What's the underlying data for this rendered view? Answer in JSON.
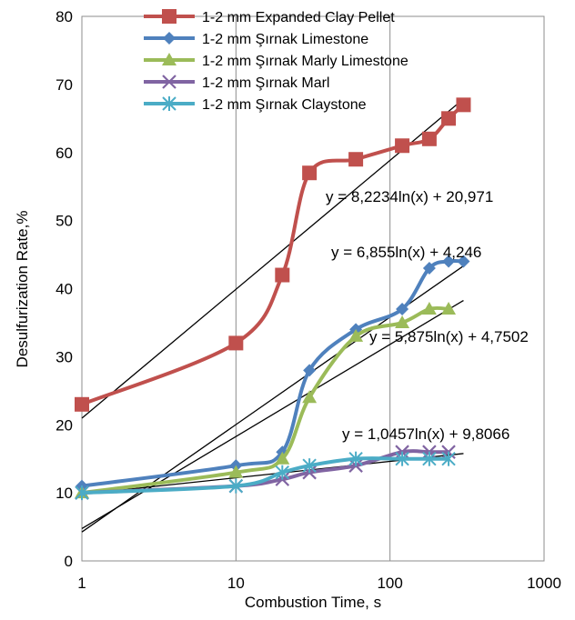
{
  "chart_data": {
    "type": "line",
    "title": "",
    "xlabel": "Combustion Time, s",
    "ylabel": "Desulfurization Rate,%",
    "x_scale": "log",
    "xlim": [
      1,
      1000
    ],
    "ylim": [
      0,
      80
    ],
    "x_ticks": [
      1,
      10,
      100,
      1000
    ],
    "x_tick_labels": [
      "1",
      "10",
      "100",
      "1000"
    ],
    "y_ticks": [
      0,
      10,
      20,
      30,
      40,
      50,
      60,
      70,
      80
    ],
    "y_tick_labels": [
      "0",
      "10",
      "20",
      "30",
      "40",
      "50",
      "60",
      "70",
      "80"
    ],
    "grid": "vertical-major",
    "legend_position": "top",
    "series": [
      {
        "name": "1-2 mm Expanded Clay Pellet",
        "color": "#c0504d",
        "marker": "square",
        "x": [
          1,
          10,
          20,
          30,
          60,
          120,
          180,
          240,
          300
        ],
        "y": [
          23,
          32,
          42,
          57,
          59,
          61,
          62,
          65,
          67
        ]
      },
      {
        "name": "1-2 mm Şırnak Limestone",
        "color": "#4f81bd",
        "marker": "diamond",
        "x": [
          1,
          10,
          20,
          30,
          60,
          120,
          180,
          240,
          300
        ],
        "y": [
          11,
          14,
          16,
          28,
          34,
          37,
          43,
          44,
          44
        ]
      },
      {
        "name": "1-2 mm Şırnak Marly Limestone",
        "color": "#9bbb59",
        "marker": "triangle",
        "x": [
          1,
          10,
          20,
          30,
          60,
          120,
          180,
          240
        ],
        "y": [
          10,
          13,
          15,
          24,
          33,
          35,
          37,
          37
        ]
      },
      {
        "name": "1-2 mm Şırnak Marl",
        "color": "#8064a2",
        "marker": "x",
        "x": [
          1,
          10,
          20,
          30,
          60,
          120,
          180,
          240
        ],
        "y": [
          10,
          11,
          12,
          13,
          14,
          16,
          16,
          16
        ]
      },
      {
        "name": "1-2 mm Şırnak Claystone",
        "color": "#4bacc6",
        "marker": "star",
        "x": [
          1,
          10,
          20,
          30,
          60,
          120,
          180,
          240
        ],
        "y": [
          10,
          11,
          13,
          14,
          15,
          15,
          15,
          15
        ]
      }
    ],
    "trendlines": [
      {
        "a": 8.2234,
        "b": 20.971,
        "x_range": [
          1,
          300
        ],
        "label": "y = 8,2234ln(x) + 20,971"
      },
      {
        "a": 6.855,
        "b": 4.246,
        "x_range": [
          1,
          300
        ],
        "label": "y = 6,855ln(x) + 4,246"
      },
      {
        "a": 5.875,
        "b": 4.7502,
        "x_range": [
          1,
          300
        ],
        "label": "y = 5,875ln(x) + 4,7502"
      },
      {
        "a": 1.0457,
        "b": 9.8066,
        "x_range": [
          1,
          300
        ],
        "label": "y = 1,0457ln(x) + 9,8066"
      }
    ]
  }
}
